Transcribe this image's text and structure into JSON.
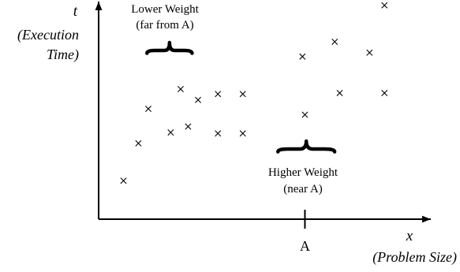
{
  "chart_data": {
    "type": "scatter",
    "title": "",
    "xlabel": "x",
    "xlabel_subtitle": "(Problem Size)",
    "ylabel": "t",
    "ylabel_subtitle_line1": "(Execution",
    "ylabel_subtitle_line2": "Time)",
    "grid": false,
    "x_marker": {
      "value": 41.5,
      "label": "A"
    },
    "points": [
      {
        "x": 5,
        "y": 19.5
      },
      {
        "x": 8,
        "y": 38.5
      },
      {
        "x": 10,
        "y": 56
      },
      {
        "x": 14.5,
        "y": 44
      },
      {
        "x": 16.5,
        "y": 66
      },
      {
        "x": 18,
        "y": 47
      },
      {
        "x": 20,
        "y": 60.5
      },
      {
        "x": 24,
        "y": 63.5
      },
      {
        "x": 24,
        "y": 43.5
      },
      {
        "x": 29,
        "y": 63.5
      },
      {
        "x": 29,
        "y": 43.5
      },
      {
        "x": 41,
        "y": 82.5
      },
      {
        "x": 41.5,
        "y": 53
      },
      {
        "x": 47.5,
        "y": 90
      },
      {
        "x": 48.5,
        "y": 64
      },
      {
        "x": 54.5,
        "y": 84.5
      },
      {
        "x": 57.5,
        "y": 64
      },
      {
        "x": 57.5,
        "y": 108.5
      }
    ],
    "annotations": [
      {
        "name": "lower-weight",
        "line1": "Lower Weight",
        "line2": "(far from A)",
        "x_from": 11,
        "x_to": 18
      },
      {
        "name": "higher-weight",
        "line1": "Higher Weight",
        "line2": "(near A)",
        "x_from": 37.5,
        "x_to": 47
      }
    ],
    "xlim": [
      0,
      60
    ],
    "ylim": [
      0,
      110
    ]
  }
}
